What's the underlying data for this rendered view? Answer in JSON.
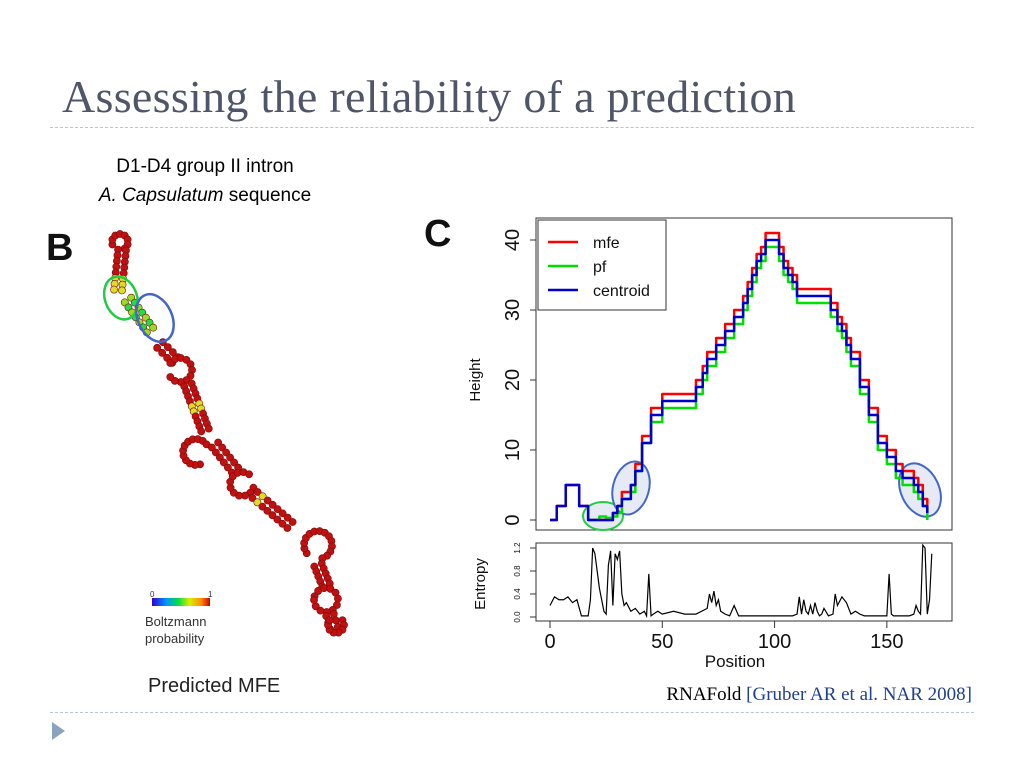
{
  "slide": {
    "title": "Assessing the reliability of a prediction",
    "caption_line1": "D1-D4 group II intron",
    "caption_species": "A. Capsulatum",
    "caption_rest": " sequence",
    "citation_tool": "RNAFold ",
    "citation_ref": "[Gruber AR et al. NAR 2008]"
  },
  "panel_b": {
    "label": "B",
    "scale_min": "0",
    "scale_max": "1",
    "scale_label_line1": "Boltzmann",
    "scale_label_line2": "probability",
    "footer": "Predicted MFE"
  },
  "panel_c": {
    "label": "C"
  },
  "colors": {
    "title": "#505568",
    "mfe": "#ff0000",
    "pf": "#00e000",
    "centroid": "#0000cc",
    "nucleotide": "#c01010",
    "highlight_green": "#22cc44",
    "highlight_blue": "#4466cc"
  },
  "chart_data": [
    {
      "type": "line",
      "title": "",
      "xlabel": "",
      "ylabel": "Height",
      "xlim": [
        0,
        175
      ],
      "ylim": [
        -1,
        42
      ],
      "yticks": [
        "0",
        "10",
        "20",
        "30",
        "40"
      ],
      "legend_position": "top-left",
      "series": [
        {
          "name": "mfe",
          "color": "#ff0000",
          "x": [
            0,
            3,
            7,
            10,
            13,
            17,
            25,
            28,
            30,
            32,
            36,
            38,
            41,
            45,
            50,
            55,
            60,
            65,
            68,
            70,
            72,
            74,
            78,
            82,
            86,
            88,
            90,
            92,
            94,
            96,
            98,
            102,
            104,
            106,
            108,
            110,
            112,
            115,
            120,
            125,
            128,
            130,
            132,
            134,
            138,
            142,
            146,
            150,
            154,
            157,
            160,
            162,
            164,
            166,
            168
          ],
          "y": [
            0,
            2,
            5,
            5,
            2,
            0,
            0,
            1,
            2,
            4,
            5,
            8,
            12,
            16,
            18,
            18,
            18,
            20,
            22,
            24,
            24,
            26,
            28,
            30,
            32,
            34,
            36,
            38,
            39,
            41,
            41,
            39,
            37,
            36,
            35,
            33,
            33,
            33,
            33,
            31,
            29,
            28,
            26,
            24,
            20,
            16,
            12,
            10,
            8,
            7,
            7,
            6,
            5,
            3,
            1
          ]
        },
        {
          "name": "pf",
          "color": "#00e000",
          "x": [
            18,
            22,
            25,
            28,
            30,
            32,
            36,
            38,
            41,
            45,
            50,
            55,
            60,
            65,
            68,
            70,
            72,
            74,
            78,
            82,
            86,
            88,
            90,
            92,
            94,
            96,
            98,
            102,
            104,
            106,
            108,
            110,
            112,
            115,
            120,
            125,
            128,
            130,
            132,
            134,
            138,
            142,
            146,
            150,
            154,
            157,
            160,
            162,
            164,
            166,
            168
          ],
          "y": [
            0,
            0.5,
            0.3,
            0.5,
            1,
            3,
            4,
            7,
            11,
            14,
            16,
            16,
            16,
            18,
            20,
            22,
            22,
            24,
            26,
            28,
            30,
            32,
            34,
            36,
            37,
            39,
            39,
            37,
            35,
            34,
            33,
            31,
            31,
            31,
            31,
            29,
            27,
            26,
            24,
            22,
            18,
            14,
            10,
            8,
            6,
            5,
            5,
            4,
            3,
            2,
            0
          ]
        },
        {
          "name": "centroid",
          "color": "#0000cc",
          "x": [
            0,
            3,
            7,
            10,
            13,
            17,
            25,
            28,
            30,
            32,
            36,
            38,
            41,
            45,
            50,
            55,
            60,
            65,
            68,
            70,
            72,
            74,
            78,
            82,
            86,
            88,
            90,
            92,
            94,
            96,
            98,
            102,
            104,
            106,
            108,
            110,
            112,
            115,
            120,
            125,
            128,
            130,
            132,
            134,
            138,
            142,
            146,
            150,
            154,
            157,
            160,
            162,
            164,
            166,
            168
          ],
          "y": [
            0,
            2,
            5,
            5,
            2,
            0,
            0,
            1,
            2,
            3,
            5,
            7,
            11,
            15,
            17,
            17,
            17,
            19,
            21,
            23,
            23,
            25,
            27,
            29,
            31,
            33,
            35,
            37,
            38,
            40,
            40,
            38,
            36,
            35,
            34,
            32,
            32,
            32,
            32,
            30,
            28,
            27,
            25,
            23,
            19,
            15,
            11,
            9,
            7,
            6,
            6,
            5,
            4,
            2,
            1
          ]
        }
      ]
    },
    {
      "type": "line",
      "title": "",
      "xlabel": "Position",
      "ylabel": "Entropy",
      "xlim": [
        0,
        175
      ],
      "ylim": [
        0,
        1.3
      ],
      "xticks": [
        "0",
        "50",
        "100",
        "150"
      ],
      "yticks": [
        "0.0",
        "0.4",
        "0.8",
        "1.2"
      ],
      "series": [
        {
          "name": "",
          "color": "#000000",
          "x": [
            0,
            2,
            4,
            6,
            8,
            10,
            12,
            14,
            16,
            17,
            18,
            19,
            20,
            21,
            22,
            23,
            24,
            25,
            26,
            27,
            28,
            29,
            30,
            31,
            32,
            33,
            34,
            36,
            38,
            40,
            42,
            43,
            44,
            45,
            46,
            48,
            50,
            55,
            60,
            65,
            70,
            71,
            72,
            73,
            74,
            75,
            76,
            78,
            80,
            82,
            84,
            86,
            90,
            95,
            100,
            105,
            108,
            110,
            111,
            112,
            113,
            114,
            115,
            116,
            117,
            118,
            119,
            120,
            121,
            122,
            124,
            126,
            127,
            128,
            130,
            132,
            134,
            136,
            138,
            140,
            145,
            148,
            150,
            151,
            152,
            153,
            155,
            160,
            162,
            163,
            164,
            165,
            166,
            167,
            168,
            169,
            170
          ],
          "y": [
            0.2,
            0.35,
            0.3,
            0.3,
            0.35,
            0.25,
            0.3,
            0.02,
            0.02,
            0.02,
            0.3,
            1.2,
            1.1,
            0.8,
            0.5,
            0.3,
            0.1,
            0.05,
            0.9,
            1.15,
            0.2,
            1.1,
            1.0,
            1.15,
            0.4,
            0.2,
            0.25,
            0.1,
            0.15,
            0.05,
            0.1,
            0.02,
            0.75,
            0.02,
            0.05,
            0.1,
            0.05,
            0.1,
            0.05,
            0.05,
            0.15,
            0.4,
            0.25,
            0.45,
            0.2,
            0.3,
            0.1,
            0.05,
            0.02,
            0.2,
            0.02,
            0.02,
            0.02,
            0.02,
            0.02,
            0.02,
            0.02,
            0.05,
            0.35,
            0.05,
            0.3,
            0.1,
            0.05,
            0.2,
            0.05,
            0.25,
            0.1,
            0.02,
            0.05,
            0.15,
            0.02,
            0.05,
            0.4,
            0.2,
            0.35,
            0.25,
            0.05,
            0.1,
            0.05,
            0.02,
            0.02,
            0.02,
            0.02,
            0.75,
            0.05,
            0.02,
            0.02,
            0.02,
            0.05,
            0.2,
            0.1,
            0.05,
            1.25,
            1.2,
            0.05,
            0.3,
            1.1
          ]
        }
      ]
    }
  ]
}
